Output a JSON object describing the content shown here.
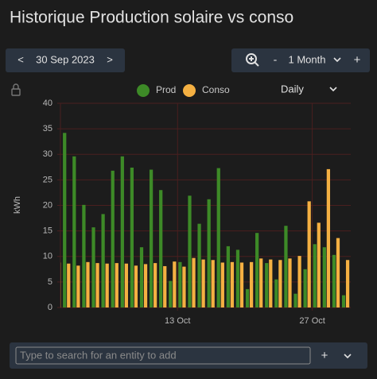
{
  "header": {
    "title": "Historique Production solaire vs conso"
  },
  "date_nav": {
    "prev": "<",
    "date": "30 Sep 2023",
    "next": ">"
  },
  "zoom": {
    "minus": "-",
    "period": "1 Month",
    "plus": "+"
  },
  "aggregation": "Daily",
  "search": {
    "placeholder": "Type to search for an entity to add",
    "add": "+"
  },
  "chart_data": {
    "type": "bar",
    "y_label": "kWh",
    "categories": [
      null,
      null,
      null,
      null,
      null,
      null,
      null,
      null,
      null,
      null,
      null,
      null,
      null,
      "13 Oct",
      null,
      null,
      null,
      null,
      null,
      null,
      null,
      null,
      null,
      null,
      null,
      null,
      null,
      "27 Oct",
      null,
      null,
      null
    ],
    "series": [
      {
        "name": "Prod",
        "color": "#3d8a27",
        "values": [
          null,
          34.2,
          29.6,
          20.1,
          15.7,
          18.3,
          26.8,
          29.6,
          27.4,
          11.8,
          27.0,
          23.0,
          5.2,
          8.9,
          21.9,
          16.4,
          21.2,
          27.3,
          12.0,
          11.3,
          3.6,
          14.6,
          8.7,
          5.5,
          16.0,
          2.7,
          7.5,
          12.4,
          11.8,
          10.3,
          2.4
        ]
      },
      {
        "name": "Conso",
        "color": "#f4b042",
        "values": [
          8.8,
          8.6,
          8.2,
          8.9,
          8.7,
          8.6,
          8.7,
          8.6,
          8.2,
          8.5,
          8.7,
          8.1,
          9.0,
          8.0,
          9.7,
          9.4,
          9.3,
          8.8,
          8.9,
          8.8,
          8.9,
          9.6,
          9.4,
          9.3,
          9.6,
          10.1,
          20.8,
          16.6,
          27.1,
          13.6,
          9.3
        ]
      }
    ],
    "ylim": [
      0,
      40
    ],
    "yticks": [
      0,
      5,
      10,
      15,
      20,
      25,
      30,
      35,
      40
    ],
    "grid": true
  }
}
